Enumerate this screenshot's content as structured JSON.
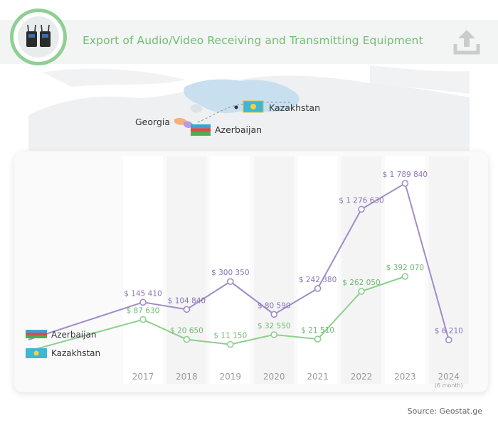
{
  "header": {
    "title": "Export of Audio/Video Receiving and Transmitting Equipment",
    "logo_icon": "av-transmitter-device-icon",
    "upload_icon": "upload-icon"
  },
  "map": {
    "labels": {
      "georgia": "Georgia",
      "azerbaijan": "Azerbaijan",
      "kazakhstan": "Kazakhstan"
    },
    "colors": {
      "kazakhstan_fill": "#c8dff0",
      "land": "#e6e8ea"
    }
  },
  "chart_data": {
    "type": "line",
    "categories": [
      "2017",
      "2018",
      "2019",
      "2020",
      "2021",
      "2022",
      "2023",
      "2024"
    ],
    "category_note": "(6 month)",
    "series": [
      {
        "name": "Azerbaijan",
        "color": "#a08cc8",
        "values": [
          145410,
          104840,
          300350,
          80590,
          242380,
          1276630,
          1789840,
          6210
        ],
        "labels": [
          "$ 145 410",
          "$ 104 840",
          "$ 300 350",
          "$ 80 590",
          "$ 242 380",
          "$ 1 276 630",
          "$ 1 789 840",
          "$ 6 210"
        ]
      },
      {
        "name": "Kazakhstan",
        "color": "#8ccf8e",
        "values": [
          87630,
          20650,
          11150,
          32550,
          21510,
          262050,
          392070,
          null
        ],
        "labels": [
          "$ 87 630",
          "$ 20 650",
          "$ 11 150",
          "$ 32 550",
          "$ 21 510",
          "$ 262 050",
          "$ 392 070",
          ""
        ]
      }
    ]
  },
  "source": "Source: Geostat.ge"
}
